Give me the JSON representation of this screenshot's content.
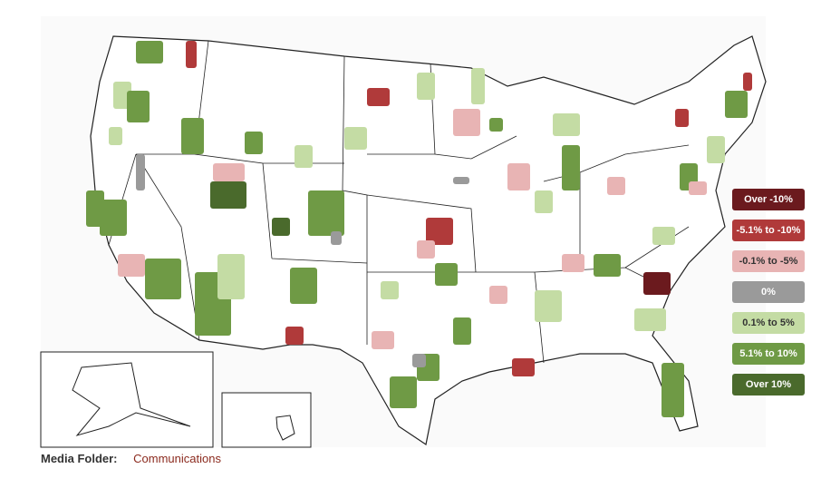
{
  "legend": {
    "items": [
      {
        "label": "Over -10%",
        "color": "#6b1a1e",
        "text_color": "#ffffff"
      },
      {
        "label": "-5.1% to -10%",
        "color": "#b03a3a",
        "text_color": "#ffffff"
      },
      {
        "label": "-0.1% to -5%",
        "color": "#e8b4b4",
        "text_color": "#333333"
      },
      {
        "label": "0%",
        "color": "#9a9a9a",
        "text_color": "#ffffff"
      },
      {
        "label": "0.1% to 5%",
        "color": "#c4dca4",
        "text_color": "#333333"
      },
      {
        "label": "5.1% to 10%",
        "color": "#6f9a45",
        "text_color": "#ffffff"
      },
      {
        "label": "Over 10%",
        "color": "#4a6a2c",
        "text_color": "#ffffff"
      }
    ]
  },
  "footer": {
    "label": "Media Folder:",
    "link": "Communications"
  }
}
